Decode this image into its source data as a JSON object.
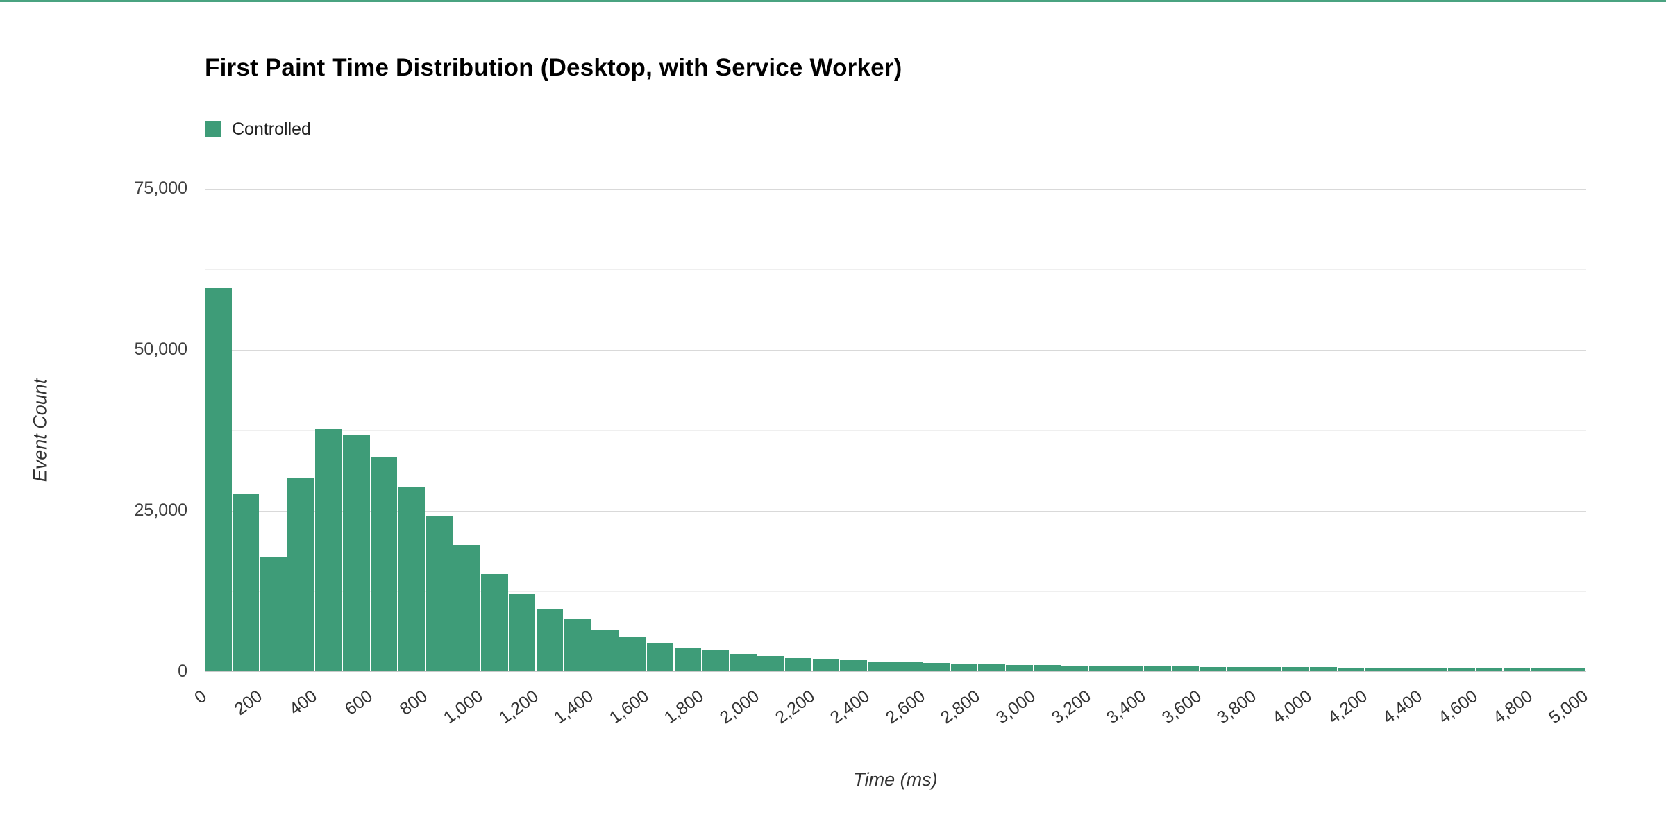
{
  "page": {
    "top_accent_color": "#4aa381"
  },
  "chart_data": {
    "type": "bar",
    "title": "First Paint Time Distribution (Desktop, with Service Worker)",
    "xlabel": "Time (ms)",
    "ylabel": "Event Count",
    "legend": [
      {
        "label": "Controlled",
        "color": "#3e9c78"
      }
    ],
    "ylim": [
      0,
      75000
    ],
    "yticks": [
      0,
      25000,
      50000,
      75000
    ],
    "ytick_labels": [
      "0",
      "25,000",
      "50,000",
      "75,000"
    ],
    "minor_yticks": [
      12500,
      37500,
      62500
    ],
    "xlim_ms": [
      0,
      5000
    ],
    "bin_width_ms": 100,
    "xtick_labels": [
      "0",
      "200",
      "400",
      "600",
      "800",
      "1,000",
      "1,200",
      "1,400",
      "1,600",
      "1,800",
      "2,000",
      "2,200",
      "2,400",
      "2,600",
      "2,800",
      "3,000",
      "3,200",
      "3,400",
      "3,600",
      "3,800",
      "4,000",
      "4,200",
      "4,400",
      "4,600",
      "4,800",
      "5,000"
    ],
    "series": [
      {
        "name": "Controlled",
        "color": "#3e9c78",
        "values": [
          59500,
          27600,
          17800,
          30000,
          37600,
          36800,
          33200,
          28700,
          24000,
          19600,
          15100,
          12000,
          9600,
          8200,
          6400,
          5400,
          4400,
          3700,
          3200,
          2700,
          2400,
          2100,
          1900,
          1700,
          1550,
          1400,
          1300,
          1200,
          1100,
          1000,
          950,
          900,
          850,
          800,
          780,
          750,
          700,
          680,
          650,
          620,
          600,
          560,
          540,
          520,
          500,
          480,
          460,
          440,
          420,
          400
        ]
      }
    ]
  }
}
